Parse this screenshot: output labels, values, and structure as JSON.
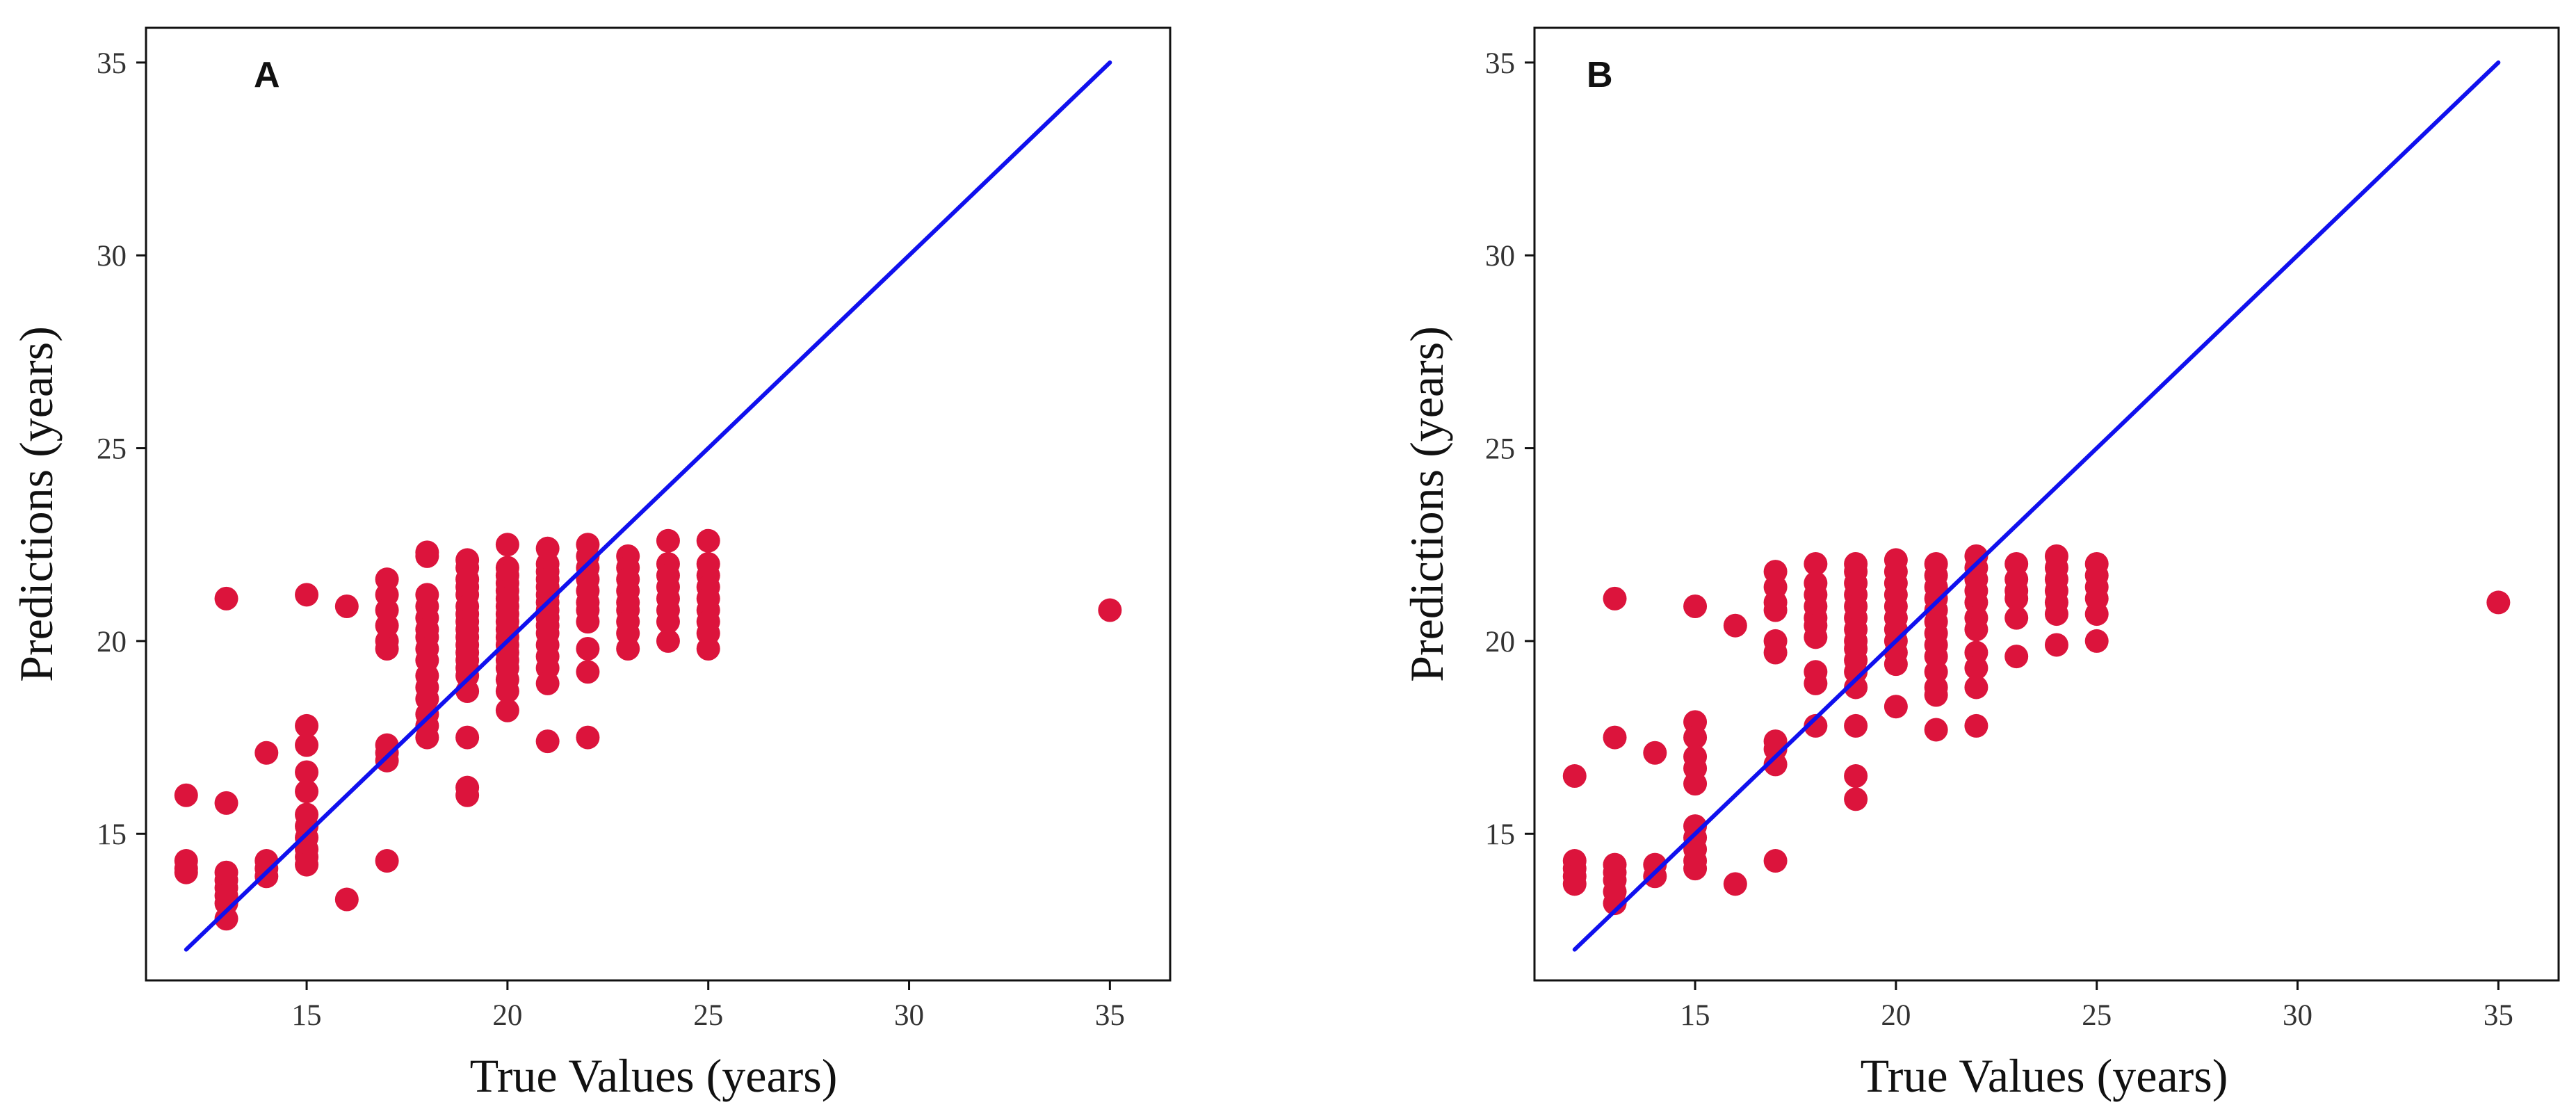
{
  "chart_data": [
    {
      "type": "scatter",
      "panel_label": "A",
      "xlabel": "True Values (years)",
      "ylabel": "Predictions (years)",
      "xlim": [
        11,
        36.5
      ],
      "ylim": [
        11.2,
        35.9
      ],
      "xticks": [
        15,
        20,
        25,
        30,
        35
      ],
      "yticks": [
        15,
        20,
        25,
        30,
        35
      ],
      "grid": false,
      "series": [
        {
          "name": "predictions",
          "color": "#dc143c",
          "points": [
            [
              12,
              16
            ],
            [
              12,
              14.3
            ],
            [
              12,
              14.1
            ],
            [
              12,
              14
            ],
            [
              13,
              21.1
            ],
            [
              13,
              15.8
            ],
            [
              13,
              14
            ],
            [
              13,
              13.8
            ],
            [
              13,
              13.6
            ],
            [
              13,
              13.4
            ],
            [
              13,
              13.2
            ],
            [
              13,
              12.8
            ],
            [
              14,
              17.1
            ],
            [
              14,
              14.3
            ],
            [
              14,
              14.1
            ],
            [
              14,
              13.9
            ],
            [
              15,
              21.2
            ],
            [
              15,
              17.8
            ],
            [
              15,
              17.3
            ],
            [
              15,
              16.6
            ],
            [
              15,
              16.1
            ],
            [
              15,
              15.5
            ],
            [
              15,
              15.2
            ],
            [
              15,
              14.9
            ],
            [
              15,
              14.6
            ],
            [
              15,
              14.4
            ],
            [
              15,
              14.2
            ],
            [
              16,
              20.9
            ],
            [
              16,
              13.3
            ],
            [
              17,
              21.6
            ],
            [
              17,
              21.2
            ],
            [
              17,
              20.8
            ],
            [
              17,
              20.4
            ],
            [
              17,
              20
            ],
            [
              17,
              19.8
            ],
            [
              17,
              17.3
            ],
            [
              17,
              17.1
            ],
            [
              17,
              16.9
            ],
            [
              17,
              14.3
            ],
            [
              18,
              22.3
            ],
            [
              18,
              22.2
            ],
            [
              18,
              21.2
            ],
            [
              18,
              20.9
            ],
            [
              18,
              20.6
            ],
            [
              18,
              20.3
            ],
            [
              18,
              20.1
            ],
            [
              18,
              19.8
            ],
            [
              18,
              19.5
            ],
            [
              18,
              19.1
            ],
            [
              18,
              18.8
            ],
            [
              18,
              18.5
            ],
            [
              18,
              18.1
            ],
            [
              18,
              17.8
            ],
            [
              18,
              17.5
            ],
            [
              19,
              22.1
            ],
            [
              19,
              21.9
            ],
            [
              19,
              21.6
            ],
            [
              19,
              21.4
            ],
            [
              19,
              21.2
            ],
            [
              19,
              20.9
            ],
            [
              19,
              20.7
            ],
            [
              19,
              20.5
            ],
            [
              19,
              20.3
            ],
            [
              19,
              20.1
            ],
            [
              19,
              19.9
            ],
            [
              19,
              19.7
            ],
            [
              19,
              19.5
            ],
            [
              19,
              19.3
            ],
            [
              19,
              19.1
            ],
            [
              19,
              18.7
            ],
            [
              19,
              17.5
            ],
            [
              19,
              16.2
            ],
            [
              19,
              16
            ],
            [
              20,
              22.5
            ],
            [
              20,
              21.9
            ],
            [
              20,
              21.7
            ],
            [
              20,
              21.5
            ],
            [
              20,
              21.3
            ],
            [
              20,
              21.1
            ],
            [
              20,
              20.9
            ],
            [
              20,
              20.7
            ],
            [
              20,
              20.5
            ],
            [
              20,
              20.3
            ],
            [
              20,
              20.1
            ],
            [
              20,
              19.9
            ],
            [
              20,
              19.7
            ],
            [
              20,
              19.5
            ],
            [
              20,
              19.3
            ],
            [
              20,
              19
            ],
            [
              20,
              18.7
            ],
            [
              20,
              18.2
            ],
            [
              21,
              22.4
            ],
            [
              21,
              22
            ],
            [
              21,
              21.8
            ],
            [
              21,
              21.6
            ],
            [
              21,
              21.4
            ],
            [
              21,
              21.2
            ],
            [
              21,
              21
            ],
            [
              21,
              20.8
            ],
            [
              21,
              20.6
            ],
            [
              21,
              20.4
            ],
            [
              21,
              20.2
            ],
            [
              21,
              19.9
            ],
            [
              21,
              19.6
            ],
            [
              21,
              19.3
            ],
            [
              21,
              18.9
            ],
            [
              21,
              17.4
            ],
            [
              22,
              22.5
            ],
            [
              22,
              22.2
            ],
            [
              22,
              21.9
            ],
            [
              22,
              21.6
            ],
            [
              22,
              21.3
            ],
            [
              22,
              21
            ],
            [
              22,
              20.8
            ],
            [
              22,
              20.5
            ],
            [
              22,
              19.8
            ],
            [
              22,
              19.2
            ],
            [
              22,
              17.5
            ],
            [
              23,
              22.2
            ],
            [
              23,
              21.9
            ],
            [
              23,
              21.6
            ],
            [
              23,
              21.3
            ],
            [
              23,
              21
            ],
            [
              23,
              20.8
            ],
            [
              23,
              20.5
            ],
            [
              23,
              20.2
            ],
            [
              23,
              19.8
            ],
            [
              24,
              22.6
            ],
            [
              24,
              22
            ],
            [
              24,
              21.7
            ],
            [
              24,
              21.4
            ],
            [
              24,
              21.1
            ],
            [
              24,
              20.8
            ],
            [
              24,
              20.5
            ],
            [
              24,
              20
            ],
            [
              25,
              22.6
            ],
            [
              25,
              22
            ],
            [
              25,
              21.7
            ],
            [
              25,
              21.4
            ],
            [
              25,
              21.1
            ],
            [
              25,
              20.8
            ],
            [
              25,
              20.5
            ],
            [
              25,
              20.2
            ],
            [
              25,
              19.8
            ],
            [
              35,
              20.8
            ]
          ]
        }
      ],
      "reference_line": {
        "from": [
          12,
          12
        ],
        "to": [
          35,
          35
        ],
        "color": "#1010ee"
      }
    },
    {
      "type": "scatter",
      "panel_label": "B",
      "xlabel": "True Values (years)",
      "ylabel": "Predictions (years)",
      "xlim": [
        11,
        36.5
      ],
      "ylim": [
        11.2,
        35.9
      ],
      "xticks": [
        15,
        20,
        25,
        30,
        35
      ],
      "yticks": [
        15,
        20,
        25,
        30,
        35
      ],
      "grid": false,
      "series": [
        {
          "name": "predictions",
          "color": "#dc143c",
          "points": [
            [
              12,
              16.5
            ],
            [
              12,
              14.3
            ],
            [
              12,
              14.1
            ],
            [
              12,
              13.9
            ],
            [
              12,
              13.7
            ],
            [
              13,
              21.1
            ],
            [
              13,
              17.5
            ],
            [
              13,
              14.2
            ],
            [
              13,
              14
            ],
            [
              13,
              13.8
            ],
            [
              13,
              13.5
            ],
            [
              13,
              13.2
            ],
            [
              14,
              17.1
            ],
            [
              14,
              14.2
            ],
            [
              14,
              13.9
            ],
            [
              15,
              20.9
            ],
            [
              15,
              17.9
            ],
            [
              15,
              17.5
            ],
            [
              15,
              17
            ],
            [
              15,
              16.7
            ],
            [
              15,
              16.3
            ],
            [
              15,
              15.2
            ],
            [
              15,
              14.9
            ],
            [
              15,
              14.6
            ],
            [
              15,
              14.3
            ],
            [
              15,
              14.1
            ],
            [
              16,
              20.4
            ],
            [
              16,
              13.7
            ],
            [
              17,
              21.8
            ],
            [
              17,
              21.4
            ],
            [
              17,
              21
            ],
            [
              17,
              20.8
            ],
            [
              17,
              20
            ],
            [
              17,
              19.7
            ],
            [
              17,
              17.4
            ],
            [
              17,
              17.2
            ],
            [
              17,
              16.8
            ],
            [
              17,
              14.3
            ],
            [
              18,
              22
            ],
            [
              18,
              21.5
            ],
            [
              18,
              21.2
            ],
            [
              18,
              20.9
            ],
            [
              18,
              20.6
            ],
            [
              18,
              20.4
            ],
            [
              18,
              20.1
            ],
            [
              18,
              19.2
            ],
            [
              18,
              18.9
            ],
            [
              18,
              17.8
            ],
            [
              19,
              22
            ],
            [
              19,
              21.8
            ],
            [
              19,
              21.5
            ],
            [
              19,
              21.2
            ],
            [
              19,
              20.9
            ],
            [
              19,
              20.6
            ],
            [
              19,
              20.3
            ],
            [
              19,
              20
            ],
            [
              19,
              19.8
            ],
            [
              19,
              19.5
            ],
            [
              19,
              19.2
            ],
            [
              19,
              18.8
            ],
            [
              19,
              17.8
            ],
            [
              19,
              16.5
            ],
            [
              19,
              15.9
            ],
            [
              20,
              22.1
            ],
            [
              20,
              21.8
            ],
            [
              20,
              21.5
            ],
            [
              20,
              21.2
            ],
            [
              20,
              20.9
            ],
            [
              20,
              20.6
            ],
            [
              20,
              20.3
            ],
            [
              20,
              20
            ],
            [
              20,
              19.7
            ],
            [
              20,
              19.4
            ],
            [
              20,
              18.3
            ],
            [
              21,
              22
            ],
            [
              21,
              21.7
            ],
            [
              21,
              21.4
            ],
            [
              21,
              21.1
            ],
            [
              21,
              20.8
            ],
            [
              21,
              20.5
            ],
            [
              21,
              20.2
            ],
            [
              21,
              19.9
            ],
            [
              21,
              19.6
            ],
            [
              21,
              19.2
            ],
            [
              21,
              18.8
            ],
            [
              21,
              18.6
            ],
            [
              21,
              17.7
            ],
            [
              22,
              22.2
            ],
            [
              22,
              21.9
            ],
            [
              22,
              21.6
            ],
            [
              22,
              21.3
            ],
            [
              22,
              21
            ],
            [
              22,
              20.6
            ],
            [
              22,
              20.3
            ],
            [
              22,
              19.7
            ],
            [
              22,
              19.3
            ],
            [
              22,
              18.8
            ],
            [
              22,
              17.8
            ],
            [
              23,
              22
            ],
            [
              23,
              21.6
            ],
            [
              23,
              21.3
            ],
            [
              23,
              21.1
            ],
            [
              23,
              20.6
            ],
            [
              23,
              19.6
            ],
            [
              24,
              22.2
            ],
            [
              24,
              21.9
            ],
            [
              24,
              21.6
            ],
            [
              24,
              21.3
            ],
            [
              24,
              21
            ],
            [
              24,
              20.7
            ],
            [
              24,
              19.9
            ],
            [
              25,
              22
            ],
            [
              25,
              21.7
            ],
            [
              25,
              21.4
            ],
            [
              25,
              21.1
            ],
            [
              25,
              20.7
            ],
            [
              25,
              20
            ],
            [
              35,
              21
            ]
          ]
        }
      ],
      "reference_line": {
        "from": [
          12,
          12
        ],
        "to": [
          35,
          35
        ],
        "color": "#1010ee"
      }
    }
  ]
}
